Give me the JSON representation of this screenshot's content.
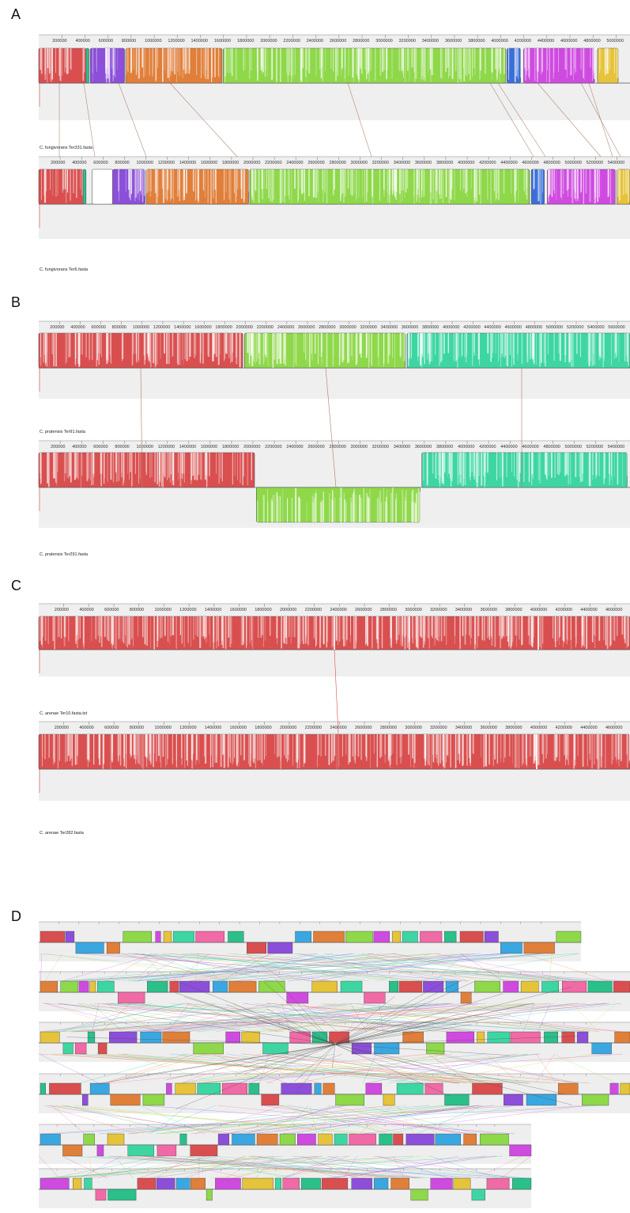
{
  "panels": [
    {
      "letter": "A",
      "genomes": [
        {
          "name": "C. fungivorans Ter331.fasta",
          "ticks": [
            "200000",
            "400000",
            "600000",
            "800000",
            "1000000",
            "1200000",
            "1400000",
            "1600000",
            "1800000",
            "2000000",
            "2200000",
            "2400000",
            "2600000",
            "2800000",
            "3000000",
            "3200000",
            "3400000",
            "3600000",
            "3800000",
            "4000000",
            "4200000",
            "4400000",
            "4600000",
            "4800000",
            "5000000"
          ],
          "blocks": [
            {
              "color": "#d94f4f",
              "from": 0.0,
              "to": 0.08,
              "inverted": false
            },
            {
              "color": "#2bbf8a",
              "from": 0.08,
              "to": 0.085,
              "inverted": false
            },
            {
              "color": "#8c4fd9",
              "from": 0.087,
              "to": 0.145,
              "inverted": false
            },
            {
              "color": "#e07f3a",
              "from": 0.147,
              "to": 0.31,
              "inverted": false
            },
            {
              "color": "#8ed84a",
              "from": 0.312,
              "to": 0.79,
              "inverted": false
            },
            {
              "color": "#3a6fd9",
              "from": 0.792,
              "to": 0.815,
              "inverted": false
            },
            {
              "color": "#cf4be0",
              "from": 0.82,
              "to": 0.94,
              "inverted": false
            },
            {
              "color": "#e5c33a",
              "from": 0.945,
              "to": 0.98,
              "inverted": false
            }
          ]
        },
        {
          "name": "C. fungivorans Ter6.fasta",
          "ticks": [
            "200000",
            "400000",
            "600000",
            "800000",
            "1000000",
            "1200000",
            "1400000",
            "1600000",
            "1800000",
            "2000000",
            "2200000",
            "2400000",
            "2600000",
            "2800000",
            "3000000",
            "3200000",
            "3400000",
            "3600000",
            "3800000",
            "4000000",
            "4200000",
            "4400000",
            "4600000",
            "4800000",
            "5000000",
            "5200000",
            "5400000"
          ],
          "blocks": [
            {
              "color": "#d94f4f",
              "from": 0.0,
              "to": 0.075,
              "inverted": false
            },
            {
              "color": "#2bbf8a",
              "from": 0.075,
              "to": 0.08,
              "inverted": false
            },
            {
              "color": "#ffffff",
              "from": 0.09,
              "to": 0.125,
              "inverted": false
            },
            {
              "color": "#8c4fd9",
              "from": 0.125,
              "to": 0.18,
              "inverted": false
            },
            {
              "color": "#e07f3a",
              "from": 0.182,
              "to": 0.355,
              "inverted": false
            },
            {
              "color": "#8ed84a",
              "from": 0.357,
              "to": 0.83,
              "inverted": false
            },
            {
              "color": "#3a6fd9",
              "from": 0.833,
              "to": 0.855,
              "inverted": false
            },
            {
              "color": "#cf4be0",
              "from": 0.86,
              "to": 0.975,
              "inverted": false
            },
            {
              "color": "#e5c33a",
              "from": 0.978,
              "to": 1.0,
              "inverted": false
            }
          ]
        }
      ]
    },
    {
      "letter": "B",
      "genomes": [
        {
          "name": "C. pratensis Ter91.fasta",
          "ticks": [
            "200000",
            "400000",
            "600000",
            "800000",
            "1000000",
            "1200000",
            "1400000",
            "1600000",
            "1800000",
            "2000000",
            "2200000",
            "2400000",
            "2600000",
            "2800000",
            "3000000",
            "3200000",
            "3400000",
            "3600000",
            "3800000",
            "4000000",
            "4200000",
            "4400000",
            "4600000",
            "4800000",
            "5000000",
            "5200000",
            "5400000",
            "5600000"
          ],
          "blocks": [
            {
              "color": "#d94f4f",
              "from": 0.0,
              "to": 0.345,
              "inverted": false
            },
            {
              "color": "#8ed84a",
              "from": 0.348,
              "to": 0.62,
              "inverted": false
            },
            {
              "color": "#3dd6a3",
              "from": 0.623,
              "to": 1.0,
              "inverted": false
            }
          ]
        },
        {
          "name": "C. pratensis Ter291.fasta",
          "ticks": [
            "200000",
            "400000",
            "600000",
            "800000",
            "1000000",
            "1200000",
            "1400000",
            "1600000",
            "1800000",
            "2000000",
            "2200000",
            "2400000",
            "2600000",
            "2800000",
            "3000000",
            "3200000",
            "3400000",
            "3600000",
            "3800000",
            "4000000",
            "4200000",
            "4400000",
            "4600000",
            "4800000",
            "5000000",
            "5200000",
            "5400000"
          ],
          "blocks": [
            {
              "color": "#d94f4f",
              "from": 0.0,
              "to": 0.365,
              "inverted": false
            },
            {
              "color": "#8ed84a",
              "from": 0.368,
              "to": 0.645,
              "inverted": true
            },
            {
              "color": "#3dd6a3",
              "from": 0.648,
              "to": 0.995,
              "inverted": false
            }
          ]
        }
      ]
    },
    {
      "letter": "C",
      "genomes": [
        {
          "name": "C. arenae Ter10.fasta.txt",
          "ticks": [
            "200000",
            "400000",
            "600000",
            "800000",
            "1000000",
            "1200000",
            "1400000",
            "1600000",
            "1800000",
            "2000000",
            "2200000",
            "2400000",
            "2600000",
            "2800000",
            "3000000",
            "3200000",
            "3400000",
            "3600000",
            "3800000",
            "4000000",
            "4200000",
            "4400000",
            "4600000"
          ],
          "blocks": [
            {
              "color": "#d94f4f",
              "from": 0.0,
              "to": 1.0,
              "inverted": false
            }
          ]
        },
        {
          "name": "C. arenae Ter282.fasta",
          "ticks": [
            "200000",
            "400000",
            "600000",
            "800000",
            "1000000",
            "1200000",
            "1400000",
            "1600000",
            "1800000",
            "2000000",
            "2200000",
            "2400000",
            "2600000",
            "2800000",
            "3000000",
            "3200000",
            "3400000",
            "3600000",
            "3800000",
            "4000000",
            "4200000",
            "4400000",
            "4600000"
          ],
          "blocks": [
            {
              "color": "#d94f4f",
              "from": 0.0,
              "to": 1.0,
              "inverted": false
            }
          ]
        }
      ]
    },
    {
      "letter": "D",
      "palette": [
        "#d94f4f",
        "#8c4fd9",
        "#3aa7e0",
        "#e07f3a",
        "#8ed84a",
        "#cf4be0",
        "#e5c33a",
        "#3dd6a3",
        "#f06aa5",
        "#2bbf8a"
      ]
    }
  ]
}
